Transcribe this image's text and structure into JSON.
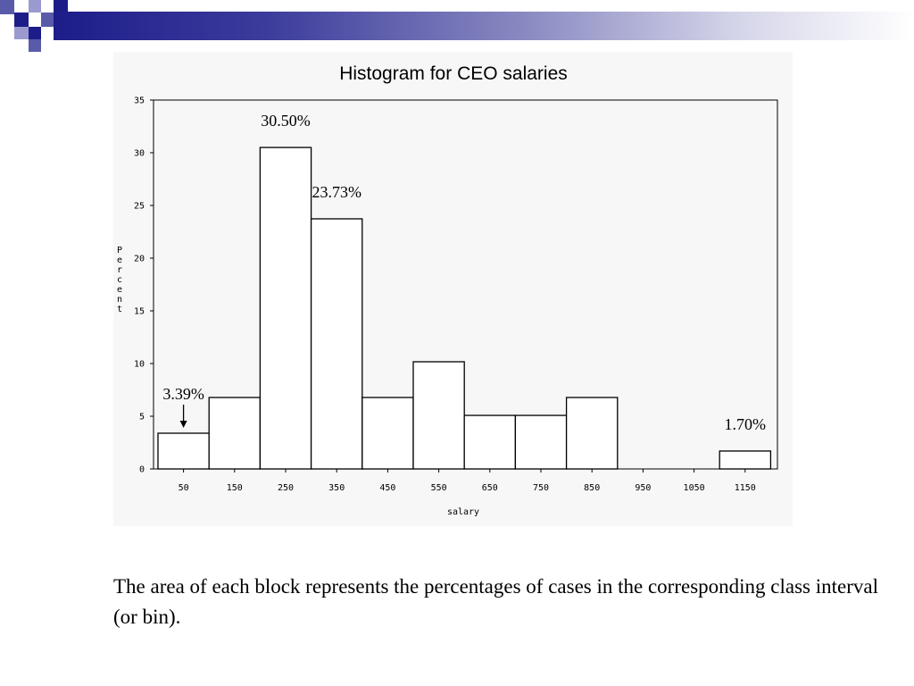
{
  "caption": "The area of each block represents the percentages of cases in the corresponding class interval (or bin).",
  "colors": {
    "header_dark": "#1d1d8a",
    "header_mid": "#5a5aab",
    "bar_fill": "#ffffff",
    "bar_stroke": "#000000",
    "panel_bg": "#f7f7f7"
  },
  "chart_data": {
    "type": "bar",
    "title": "Histogram for CEO salaries",
    "xlabel": "salary",
    "ylabel": "Percent",
    "categories": [
      "50",
      "150",
      "250",
      "350",
      "450",
      "550",
      "650",
      "750",
      "850",
      "950",
      "1050",
      "1150"
    ],
    "values": [
      3.39,
      6.78,
      30.5,
      23.73,
      6.78,
      10.17,
      5.08,
      5.08,
      6.78,
      0,
      0,
      1.7
    ],
    "yticks": [
      0,
      5,
      10,
      15,
      20,
      25,
      30,
      35
    ],
    "ylim": [
      0,
      35
    ],
    "grid": false,
    "annotations": [
      {
        "text": "3.39%",
        "category": "50",
        "arrow": true
      },
      {
        "text": "30.50%",
        "category": "250"
      },
      {
        "text": "23.73%",
        "category": "350"
      },
      {
        "text": "1.70%",
        "category": "1150"
      }
    ]
  }
}
